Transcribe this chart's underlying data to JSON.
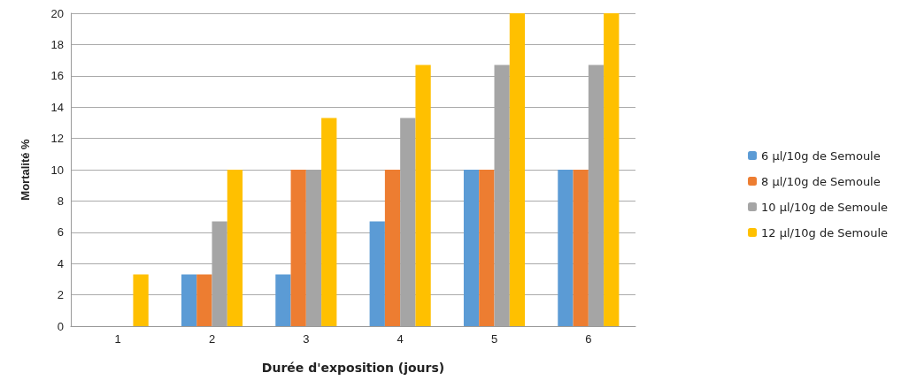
{
  "chart_data": {
    "type": "bar",
    "xlabel": "Durée d'exposition (jours)",
    "ylabel": "Mortalité %",
    "categories": [
      "1",
      "2",
      "3",
      "4",
      "5",
      "6"
    ],
    "series": [
      {
        "name": "6 µl/10g de Semoule",
        "color": "#5b9bd5",
        "values": [
          0,
          3.3,
          3.3,
          6.7,
          10,
          10
        ]
      },
      {
        "name": "8 µl/10g de Semoule",
        "color": "#ed7d31",
        "values": [
          0,
          3.3,
          10,
          10,
          10,
          10
        ]
      },
      {
        "name": "10 µl/10g de Semoule",
        "color": "#a5a5a5",
        "values": [
          0,
          6.7,
          10,
          13.3,
          16.7,
          16.7
        ]
      },
      {
        "name": "12 µl/10g de Semoule",
        "color": "#ffc000",
        "values": [
          3.3,
          10,
          13.3,
          16.7,
          20,
          20
        ]
      }
    ],
    "ylim": [
      0,
      20
    ],
    "yticks": [
      0,
      2,
      4,
      6,
      8,
      10,
      12,
      14,
      16,
      18,
      20
    ],
    "grid": "y",
    "legend": "right"
  }
}
